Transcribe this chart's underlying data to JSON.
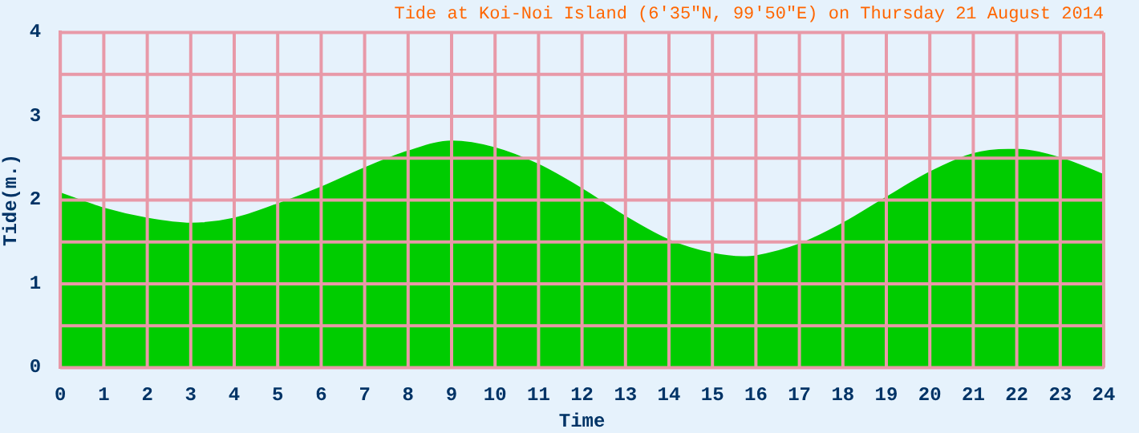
{
  "chart_data": {
    "type": "area",
    "title": "Tide at Koi-Noi Island (6′35\"N, 99′50\"E) on Thursday 21 August 2014",
    "xlabel": "Time",
    "ylabel": "Tide(m.)",
    "series": [
      {
        "color": "#00cc00",
        "x": [
          0,
          1,
          2,
          3,
          4,
          5,
          6,
          7,
          8,
          9,
          10,
          11,
          12,
          13,
          14,
          15,
          15.7,
          16,
          17,
          18,
          19,
          20,
          21,
          21.8,
          22,
          23,
          24
        ],
        "values": [
          2.08,
          1.9,
          1.78,
          1.72,
          1.78,
          1.95,
          2.15,
          2.38,
          2.58,
          2.7,
          2.62,
          2.42,
          2.13,
          1.8,
          1.52,
          1.36,
          1.32,
          1.33,
          1.47,
          1.72,
          2.03,
          2.33,
          2.55,
          2.6,
          2.6,
          2.5,
          2.3
        ]
      }
    ],
    "xlim": [
      0,
      24
    ],
    "xticks": [
      0,
      1,
      2,
      3,
      4,
      5,
      6,
      7,
      8,
      9,
      10,
      11,
      12,
      13,
      14,
      15,
      16,
      17,
      18,
      19,
      20,
      21,
      22,
      23,
      24
    ],
    "ylim": [
      0,
      4
    ],
    "yticks": [
      0,
      {
        "value": 0.5,
        "label": null
      },
      1,
      {
        "value": 1.5,
        "label": null
      },
      2,
      {
        "value": 2.5,
        "label": null
      },
      3,
      {
        "value": 3.5,
        "label": null
      },
      4
    ],
    "grid": true,
    "legend": false
  }
}
